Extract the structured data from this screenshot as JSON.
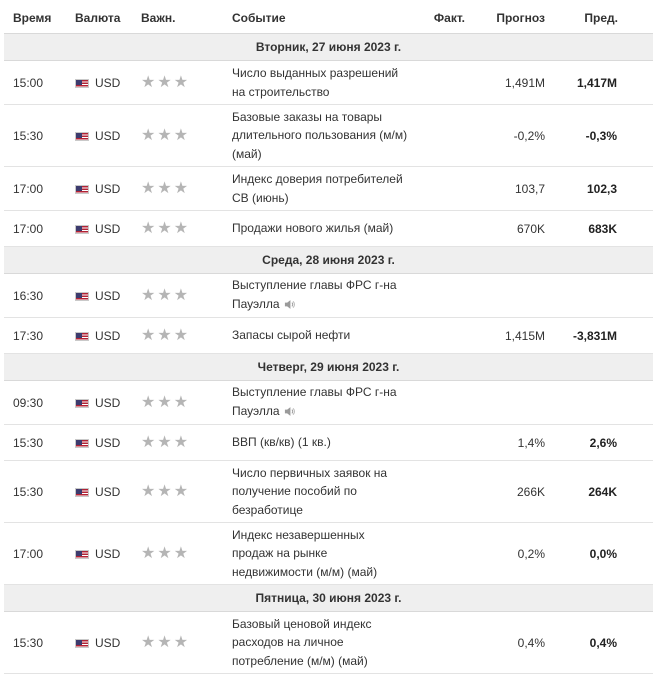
{
  "header": {
    "time": "Время",
    "currency": "Валюта",
    "importance": "Важн.",
    "event": "Событие",
    "actual": "Факт.",
    "forecast": "Прогноз",
    "previous": "Пред."
  },
  "days": [
    {
      "label": "Вторник, 27 июня 2023 г.",
      "events": [
        {
          "time": "15:00",
          "currency": "USD",
          "event": [
            "Число выданных разрешений",
            "на строительство"
          ],
          "speech": false,
          "actual": "",
          "forecast": "1,491M",
          "previous": "1,417M"
        },
        {
          "time": "15:30",
          "currency": "USD",
          "event": [
            "Базовые заказы на товары",
            "длительного пользования (м/м)",
            "(май)"
          ],
          "speech": false,
          "actual": "",
          "forecast": "-0,2%",
          "previous": "-0,3%"
        },
        {
          "time": "17:00",
          "currency": "USD",
          "event": [
            "Индекс доверия потребителей",
            "CB (июнь)"
          ],
          "speech": false,
          "actual": "",
          "forecast": "103,7",
          "previous": "102,3"
        },
        {
          "time": "17:00",
          "currency": "USD",
          "event": [
            "Продажи нового жилья (май)"
          ],
          "speech": false,
          "actual": "",
          "forecast": "670K",
          "previous": "683K"
        }
      ]
    },
    {
      "label": "Среда, 28 июня 2023 г.",
      "events": [
        {
          "time": "16:30",
          "currency": "USD",
          "event": [
            "Выступление главы ФРС г-на",
            "Пауэлла"
          ],
          "speech": true,
          "actual": "",
          "forecast": "",
          "previous": ""
        },
        {
          "time": "17:30",
          "currency": "USD",
          "event": [
            "Запасы сырой нефти"
          ],
          "speech": false,
          "actual": "",
          "forecast": "1,415M",
          "previous": "-3,831M"
        }
      ]
    },
    {
      "label": "Четверг, 29 июня 2023 г.",
      "events": [
        {
          "time": "09:30",
          "currency": "USD",
          "event": [
            "Выступление главы ФРС г-на",
            "Пауэлла"
          ],
          "speech": true,
          "actual": "",
          "forecast": "",
          "previous": ""
        },
        {
          "time": "15:30",
          "currency": "USD",
          "event": [
            "ВВП (кв/кв) (1 кв.)"
          ],
          "speech": false,
          "actual": "",
          "forecast": "1,4%",
          "previous": "2,6%"
        },
        {
          "time": "15:30",
          "currency": "USD",
          "event": [
            "Число первичных заявок на",
            "получение пособий по",
            "безработице"
          ],
          "speech": false,
          "actual": "",
          "forecast": "266K",
          "previous": "264K"
        },
        {
          "time": "17:00",
          "currency": "USD",
          "event": [
            "Индекс незавершенных",
            "продаж на рынке",
            "недвижимости (м/м) (май)"
          ],
          "speech": false,
          "actual": "",
          "forecast": "0,2%",
          "previous": "0,0%"
        }
      ]
    },
    {
      "label": "Пятница, 30 июня 2023 г.",
      "events": [
        {
          "time": "15:30",
          "currency": "USD",
          "event": [
            "Базовый ценовой индекс",
            "расходов на личное",
            "потребление (м/м) (май)"
          ],
          "speech": false,
          "actual": "",
          "forecast": "0,4%",
          "previous": "0,4%"
        }
      ]
    }
  ],
  "icons": {
    "flag": "us-flag-icon",
    "star": "star-icon",
    "speech": "speaker-icon"
  },
  "colors": {
    "day_row_bg": "#efefef",
    "star": "#b5b5b5",
    "border": "#e3e3e3"
  }
}
